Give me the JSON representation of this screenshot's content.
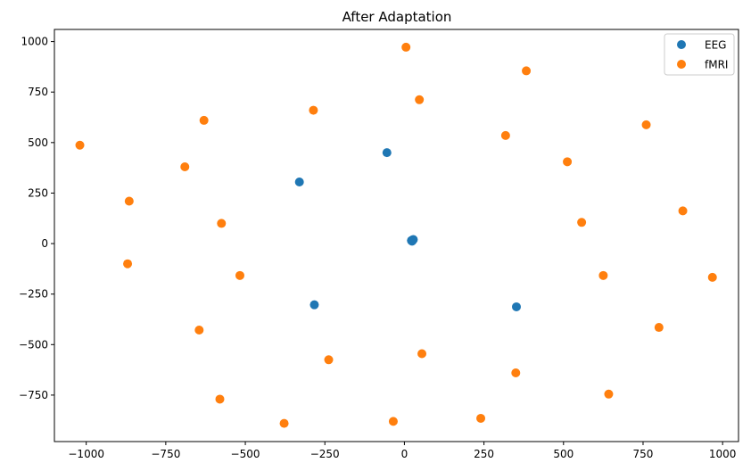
{
  "chart_data": {
    "type": "scatter",
    "title": "After Adaptation",
    "xlabel": "",
    "ylabel": "",
    "xlim": [
      -1100,
      1050
    ],
    "ylim": [
      -980,
      1060
    ],
    "xticks": [
      -1000,
      -750,
      -500,
      -250,
      0,
      250,
      500,
      750,
      1000
    ],
    "xtick_labels": [
      "−1000",
      "−750",
      "−500",
      "−250",
      "0",
      "250",
      "500",
      "750",
      "1000"
    ],
    "yticks": [
      -750,
      -500,
      -250,
      0,
      250,
      500,
      750,
      1000
    ],
    "ytick_labels": [
      "−750",
      "−500",
      "−250",
      "0",
      "250",
      "500",
      "750",
      "1000"
    ],
    "grid": false,
    "legend_position": "top-right",
    "series": [
      {
        "name": "EEG",
        "color": "#1f77b4",
        "points": [
          [
            -330,
            305
          ],
          [
            -55,
            450
          ],
          [
            25,
            18
          ],
          [
            22,
            15
          ],
          [
            28,
            20
          ],
          [
            24,
            12
          ],
          [
            -283,
            -303
          ],
          [
            352,
            -313
          ]
        ]
      },
      {
        "name": "fMRI",
        "color": "#ff7f0e",
        "points": [
          [
            5,
            972
          ],
          [
            383,
            855
          ],
          [
            47,
            712
          ],
          [
            -286,
            660
          ],
          [
            -630,
            610
          ],
          [
            -1020,
            487
          ],
          [
            760,
            588
          ],
          [
            318,
            535
          ],
          [
            -690,
            380
          ],
          [
            512,
            405
          ],
          [
            -865,
            210
          ],
          [
            -575,
            100
          ],
          [
            557,
            105
          ],
          [
            875,
            162
          ],
          [
            -870,
            -100
          ],
          [
            -517,
            -158
          ],
          [
            625,
            -158
          ],
          [
            968,
            -167
          ],
          [
            -645,
            -428
          ],
          [
            800,
            -415
          ],
          [
            -238,
            -575
          ],
          [
            55,
            -545
          ],
          [
            350,
            -640
          ],
          [
            642,
            -745
          ],
          [
            -580,
            -770
          ],
          [
            -378,
            -890
          ],
          [
            -35,
            -880
          ],
          [
            240,
            -865
          ]
        ]
      }
    ]
  }
}
